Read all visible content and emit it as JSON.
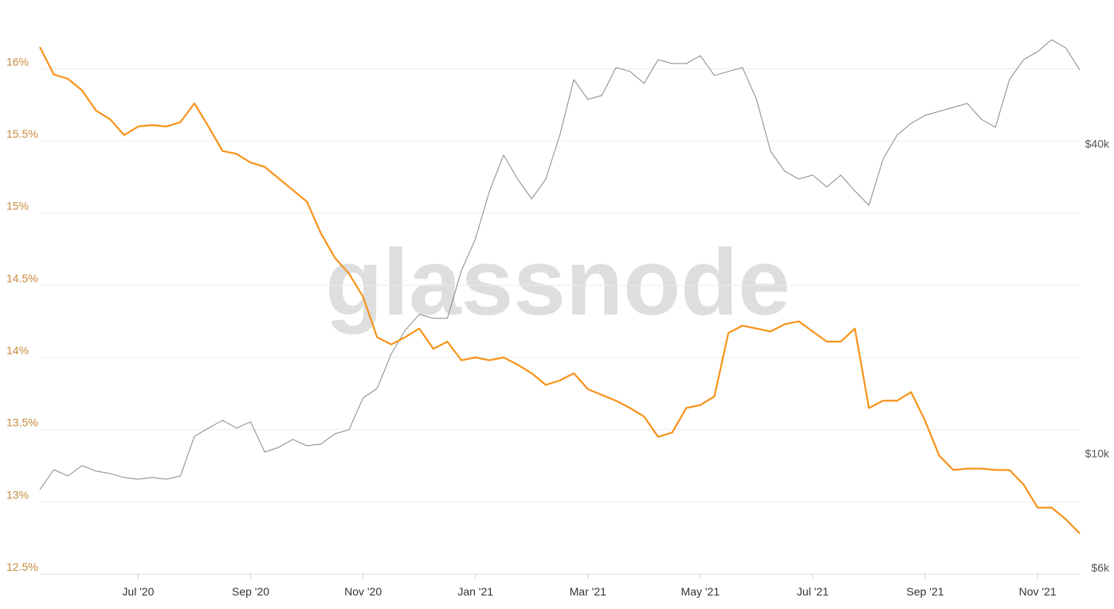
{
  "chart_data": {
    "type": "line",
    "watermark": "glassnode",
    "categories": [
      null,
      null,
      null,
      null,
      null,
      null,
      null,
      "Jul '20",
      null,
      null,
      null,
      null,
      null,
      null,
      null,
      "Sep '20",
      null,
      null,
      null,
      null,
      null,
      null,
      null,
      "Nov '20",
      null,
      null,
      null,
      null,
      null,
      null,
      null,
      "Jan '21",
      null,
      null,
      null,
      null,
      null,
      null,
      null,
      "Mar '21",
      null,
      null,
      null,
      null,
      null,
      null,
      null,
      "May '21",
      null,
      null,
      null,
      null,
      null,
      null,
      null,
      "Jul '21",
      null,
      null,
      null,
      null,
      null,
      null,
      null,
      "Sep '21",
      null,
      null,
      null,
      null,
      null,
      null,
      null,
      "Nov '21",
      null,
      null,
      null
    ],
    "series": [
      {
        "color": "#f7931a",
        "axis": "y",
        "values": [
          16.15,
          15.96,
          15.93,
          15.85,
          15.71,
          15.65,
          15.54,
          15.6,
          15.61,
          15.6,
          15.63,
          15.76,
          15.6,
          15.43,
          15.41,
          15.35,
          15.32,
          15.24,
          15.16,
          15.08,
          14.86,
          14.69,
          14.58,
          14.42,
          14.14,
          14.09,
          14.14,
          14.2,
          14.06,
          14.11,
          13.98,
          14.0,
          13.98,
          14.0,
          13.95,
          13.89,
          13.81,
          13.84,
          13.89,
          13.78,
          13.74,
          13.7,
          13.65,
          13.59,
          13.45,
          13.48,
          13.65,
          13.67,
          13.73,
          14.17,
          14.22,
          14.2,
          14.18,
          14.23,
          14.25,
          14.18,
          14.11,
          14.11,
          14.2,
          13.65,
          13.7,
          13.7,
          13.76,
          13.56,
          13.32,
          13.22,
          13.23,
          13.23,
          13.22,
          13.22,
          13.12,
          12.96,
          12.96,
          12.88,
          12.78
        ]
      },
      {
        "color": "#888888",
        "axis": "y2",
        "values": [
          8510,
          9300,
          9040,
          9470,
          9240,
          9140,
          8980,
          8910,
          8980,
          8910,
          9040,
          10800,
          11200,
          11600,
          11200,
          11520,
          10060,
          10280,
          10650,
          10350,
          10430,
          10920,
          11120,
          12820,
          13380,
          15600,
          17360,
          18640,
          18310,
          18310,
          22680,
          26150,
          32380,
          38030,
          34160,
          31250,
          34160,
          41570,
          53330,
          48790,
          49670,
          56270,
          55290,
          52400,
          58310,
          57290,
          57290,
          59360,
          54310,
          55290,
          56270,
          48790,
          38710,
          35410,
          34160,
          34780,
          32970,
          34780,
          32380,
          30370,
          37340,
          41570,
          43840,
          45440,
          46250,
          47080,
          47930,
          44620,
          43070,
          53330,
          58310,
          60430,
          63750,
          61500,
          55680
        ]
      }
    ],
    "ylim": [
      12.5,
      16.25
    ],
    "yticks": [
      {
        "value": 12.5,
        "label": "12.5%"
      },
      {
        "value": 13,
        "label": "13%"
      },
      {
        "value": 13.5,
        "label": "13.5%"
      },
      {
        "value": 14,
        "label": "14%"
      },
      {
        "value": 14.5,
        "label": "14.5%"
      },
      {
        "value": 15,
        "label": "15%"
      },
      {
        "value": 15.5,
        "label": "15.5%"
      },
      {
        "value": 16,
        "label": "16%"
      }
    ],
    "y2lim": [
      5830,
      65800
    ],
    "y2log": true,
    "y2ticks": [
      {
        "value": 6000,
        "label": "$6k"
      },
      {
        "value": 10000,
        "label": "$10k"
      },
      {
        "value": 40000,
        "label": "$40k"
      }
    ],
    "grid": true
  }
}
